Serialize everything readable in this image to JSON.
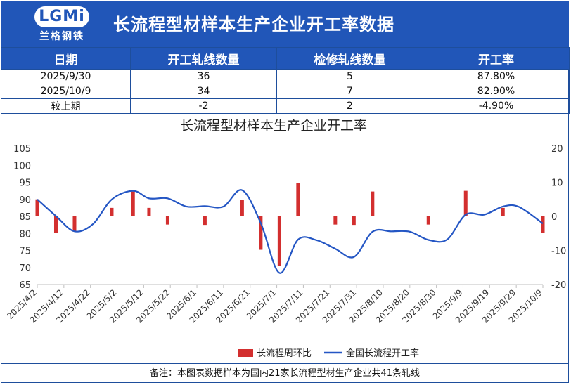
{
  "header": {
    "logo_text": "LGMi",
    "logo_sub": "兰格钢铁",
    "title": "长流程型材样本生产企业开工率数据"
  },
  "table": {
    "columns": [
      "日期",
      "开工轧线数量",
      "检修轧线数量",
      "开工率"
    ],
    "rows": [
      [
        "2025/9/30",
        "36",
        "5",
        "87.80%"
      ],
      [
        "2025/10/9",
        "34",
        "7",
        "82.90%"
      ],
      [
        "较上期",
        "-2",
        "2",
        "-4.90%"
      ]
    ]
  },
  "footer": {
    "note": "备注：本图表数据样本为国内21家长流程型材生产企业共41条轧线"
  },
  "colors": {
    "header_bg": "#2156b8",
    "bar": "#d32f2f",
    "line": "#2456c4"
  },
  "chart_data": {
    "type": "bar+line",
    "title": "长流程型材样本生产企业开工率",
    "legend_position": "bottom",
    "x_ticks": [
      "2025/4/2",
      "2025/4/12",
      "2025/4/22",
      "2025/5/2",
      "2025/5/12",
      "2025/5/22",
      "2025/6/1",
      "2025/6/11",
      "2025/6/21",
      "2025/7/1",
      "2025/7/11",
      "2025/7/21",
      "2025/7/31",
      "2025/8/10",
      "2025/8/20",
      "2025/8/30",
      "2025/9/9",
      "2025/9/19",
      "2025/9/29",
      "2025/10/9"
    ],
    "x_range": [
      "2025/4/2",
      "2025/10/9"
    ],
    "y_left": {
      "min": 65,
      "max": 105,
      "ticks": [
        65,
        70,
        75,
        80,
        85,
        90,
        95,
        100,
        105
      ]
    },
    "y_right": {
      "min": -20,
      "max": 20,
      "ticks": [
        -20,
        -10,
        0,
        10,
        20
      ]
    },
    "series": [
      {
        "name": "长流程周环比",
        "type": "bar",
        "axis": "right",
        "x": [
          "2025/4/2",
          "2025/4/9",
          "2025/4/16",
          "2025/4/30",
          "2025/5/8",
          "2025/5/14",
          "2025/5/21",
          "2025/6/4",
          "2025/6/18",
          "2025/6/25",
          "2025/7/2",
          "2025/7/9",
          "2025/7/23",
          "2025/7/30",
          "2025/8/6",
          "2025/8/27",
          "2025/9/10",
          "2025/9/24",
          "2025/10/9"
        ],
        "values": [
          5.0,
          -4.9,
          -4.5,
          2.5,
          7.3,
          2.5,
          -2.4,
          -2.5,
          4.9,
          -9.8,
          -14.6,
          9.8,
          -2.4,
          -2.5,
          7.3,
          -2.4,
          7.5,
          2.5,
          -4.9
        ]
      },
      {
        "name": "全国长流程开工率",
        "type": "line",
        "axis": "left",
        "x": [
          "2025/4/2",
          "2025/4/9",
          "2025/4/16",
          "2025/4/23",
          "2025/4/30",
          "2025/5/8",
          "2025/5/14",
          "2025/5/21",
          "2025/5/28",
          "2025/6/4",
          "2025/6/11",
          "2025/6/18",
          "2025/6/25",
          "2025/7/2",
          "2025/7/9",
          "2025/7/16",
          "2025/7/23",
          "2025/7/30",
          "2025/8/6",
          "2025/8/13",
          "2025/8/20",
          "2025/8/27",
          "2025/9/3",
          "2025/9/10",
          "2025/9/17",
          "2025/9/24",
          "2025/9/30",
          "2025/10/9"
        ],
        "values": [
          90.0,
          85.1,
          80.6,
          82.8,
          90.0,
          92.5,
          90.3,
          90.3,
          87.9,
          88.0,
          87.9,
          92.7,
          83.0,
          68.4,
          78.2,
          78.0,
          75.5,
          73.1,
          80.5,
          80.6,
          80.5,
          78.1,
          78.2,
          85.5,
          85.5,
          87.9,
          87.8,
          82.9
        ]
      }
    ]
  }
}
